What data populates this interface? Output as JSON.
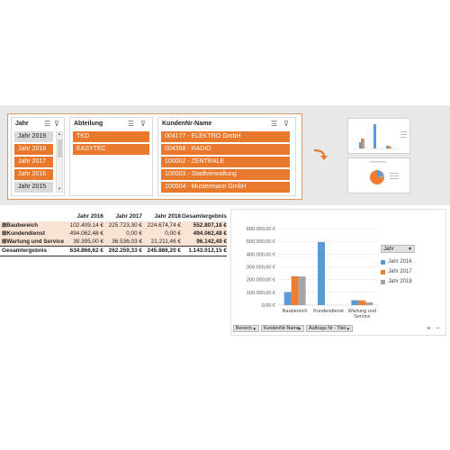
{
  "slicers": {
    "jahr": {
      "title": "Jahr",
      "items": [
        {
          "label": "Jahr 2019",
          "selected": false
        },
        {
          "label": "Jahr 2018",
          "selected": true
        },
        {
          "label": "Jahr 2017",
          "selected": true
        },
        {
          "label": "Jahr 2016",
          "selected": true
        },
        {
          "label": "Jahr 2015",
          "selected": false
        }
      ]
    },
    "abteilung": {
      "title": "Abteilung",
      "items": [
        {
          "label": "TKD",
          "selected": true
        },
        {
          "label": "EASYTEC",
          "selected": true
        }
      ]
    },
    "kunden": {
      "title": "KundenNr-Name",
      "items": [
        {
          "label": "004177 - ELEKTRO GmbH",
          "selected": true
        },
        {
          "label": "004358 - RADIO",
          "selected": true
        },
        {
          "label": "100002 - ZENTRALE",
          "selected": true
        },
        {
          "label": "100003 - Stadtverwaltung",
          "selected": true
        },
        {
          "label": "100004 - Mustermann GmbH",
          "selected": true
        }
      ]
    }
  },
  "icons": {
    "multiselect": "multi-select-icon",
    "clear": "clear-filter-icon",
    "arrow": "curved-arrow-icon"
  },
  "pivot": {
    "headers": [
      "Jahr 2016",
      "Jahr 2017",
      "Jahr 2018",
      "Gesamtergebnis"
    ],
    "rows": [
      {
        "label": "Baubereich",
        "values": [
          "102.409,14 €",
          "225.723,30 €",
          "224.674,74 €",
          "552.807,18 €"
        ]
      },
      {
        "label": "Kundendienst",
        "values": [
          "494.062,48 €",
          "0,00 €",
          "0,00 €",
          "494.062,48 €"
        ]
      },
      {
        "label": "Wartung und Service",
        "values": [
          "38.395,00 €",
          "36.536,03 €",
          "21.211,46 €",
          "96.142,49 €"
        ]
      }
    ],
    "total": {
      "label": "Gesamtergebnis",
      "values": [
        "634.866,62 €",
        "262.259,33 €",
        "245.886,20 €",
        "1.143.012,15 €"
      ]
    }
  },
  "chart_data": {
    "type": "bar",
    "categories": [
      "Baubereich",
      "Kundendienst",
      "Wartung und Service"
    ],
    "category_labels": [
      [
        "Baubereich"
      ],
      [
        "Kundendienst"
      ],
      [
        "Wartung und",
        "Service"
      ]
    ],
    "series": [
      {
        "name": "Jahr 2016",
        "values": [
          102409.14,
          494062.48,
          38395.0
        ],
        "color": "#5b9bd5"
      },
      {
        "name": "Jahr 2017",
        "values": [
          225723.3,
          0,
          36536.03
        ],
        "color": "#ed7d31"
      },
      {
        "name": "Jahr 2018",
        "values": [
          224674.74,
          0,
          21211.46
        ],
        "color": "#a5a5a5"
      }
    ],
    "yticks": [
      "0,00 €",
      "100.000,00 €",
      "200.000,00 €",
      "300.000,00 €",
      "400.000,00 €",
      "500.000,00 €",
      "600.000,00 €"
    ],
    "ylim": [
      0,
      600000
    ],
    "legend_title": "Jahr",
    "grid": true,
    "legend_position": "right"
  },
  "chart_controls": {
    "filters": [
      "Bereich",
      "KundenNr-Name",
      "Auftrags Nr - Titel"
    ],
    "zoom_in": "+",
    "zoom_out": "−"
  }
}
